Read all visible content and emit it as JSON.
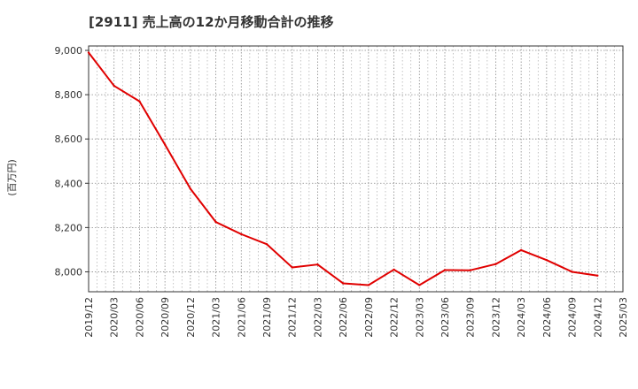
{
  "chart_data": {
    "type": "line",
    "title": "[2911]  売上高の12か月移動合計の推移",
    "xlabel": "",
    "ylabel": "(百万円)",
    "x": [
      "2019/12",
      "2020/03",
      "2020/06",
      "2020/09",
      "2020/12",
      "2021/03",
      "2021/06",
      "2021/09",
      "2021/12",
      "2022/03",
      "2022/06",
      "2022/09",
      "2022/12",
      "2023/03",
      "2023/06",
      "2023/09",
      "2023/12",
      "2024/03",
      "2024/06",
      "2024/09",
      "2024/12"
    ],
    "x_ticks": [
      "2019/12",
      "2020/03",
      "2020/06",
      "2020/09",
      "2020/12",
      "2021/03",
      "2021/06",
      "2021/09",
      "2021/12",
      "2022/03",
      "2022/06",
      "2022/09",
      "2022/12",
      "2023/03",
      "2023/06",
      "2023/09",
      "2023/12",
      "2024/03",
      "2024/06",
      "2024/09",
      "2024/12",
      "2025/03"
    ],
    "series": [
      {
        "name": "売上高",
        "color": "#e00000",
        "values": [
          8990,
          8840,
          8770,
          8575,
          8375,
          8225,
          8170,
          8125,
          8020,
          8033,
          7948,
          7940,
          8010,
          7940,
          8008,
          8007,
          8035,
          8098,
          8053,
          8000,
          7983
        ]
      }
    ],
    "yticks": [
      8000,
      8200,
      8400,
      8600,
      8800,
      9000
    ],
    "ytick_labels": [
      "8,000",
      "8,200",
      "8,400",
      "8,600",
      "8,800",
      "9,000"
    ],
    "ylim": [
      7910,
      9020
    ],
    "grid": true,
    "legend": "none"
  }
}
